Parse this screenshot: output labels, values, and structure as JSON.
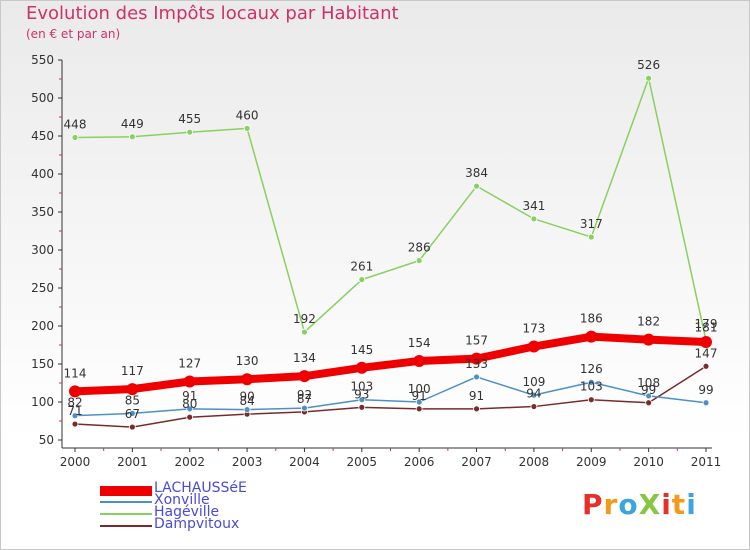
{
  "header": {
    "title": "Evolution des Impôts locaux par Habitant",
    "subtitle": "(en € et par an)"
  },
  "logo": {
    "text": "ProXiti",
    "colors": [
      "#e8302a",
      "#f29a1b",
      "#3aa6dd",
      "#88c540"
    ]
  },
  "chart_data": {
    "type": "line",
    "title": "Evolution des Impôts locaux par Habitant",
    "subtitle": "(en € et par an)",
    "xlabel": "",
    "ylabel": "",
    "ylim": [
      50,
      550
    ],
    "yticks": [
      50,
      100,
      150,
      200,
      250,
      300,
      350,
      400,
      450,
      500,
      550
    ],
    "grid": false,
    "legend": "bottom-left",
    "categories": [
      "2000",
      "2001",
      "2002",
      "2003",
      "2004",
      "2005",
      "2006",
      "2007",
      "2008",
      "2009",
      "2010",
      "2011"
    ],
    "series": [
      {
        "name": "LACHAUSSéE",
        "color": "#ee0000",
        "values": [
          114,
          117,
          127,
          130,
          134,
          145,
          154,
          157,
          173,
          186,
          182,
          179
        ]
      },
      {
        "name": "Xonville",
        "color": "#4d8fc7",
        "values": [
          82,
          85,
          91,
          90,
          92,
          103,
          100,
          133,
          109,
          126,
          108,
          99
        ]
      },
      {
        "name": "Hagéville",
        "color": "#88d060",
        "values": [
          448,
          449,
          455,
          460,
          192,
          261,
          286,
          384,
          341,
          317,
          526,
          181
        ]
      },
      {
        "name": "Dampvitoux",
        "color": "#7a2a2a",
        "values": [
          71,
          67,
          80,
          84,
          87,
          93,
          91,
          91,
          94,
          103,
          99,
          147
        ]
      }
    ]
  }
}
